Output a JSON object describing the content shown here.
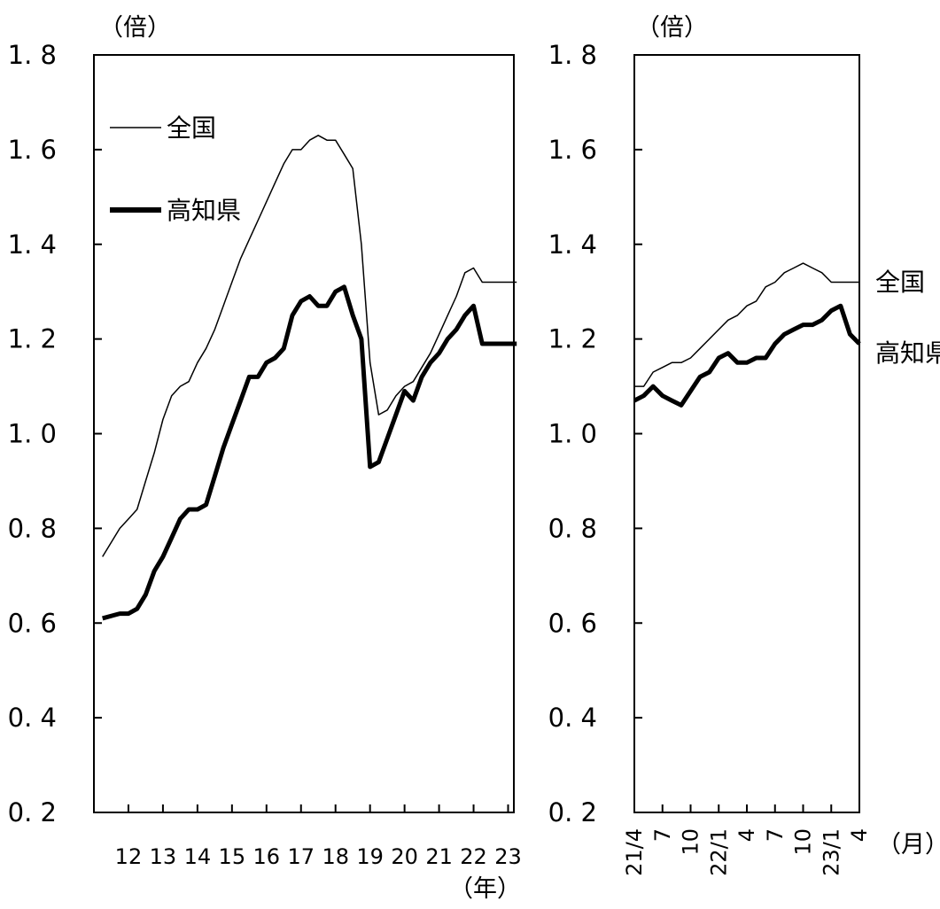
{
  "chart_data": [
    {
      "type": "line",
      "yunit": "（倍）",
      "xunit": "（年）",
      "ylim": [
        0.2,
        1.8
      ],
      "yticks": [
        "0. 2",
        "0. 4",
        "0. 6",
        "0. 8",
        "1. 0",
        "1. 2",
        "1. 4",
        "1. 6",
        "1. 8"
      ],
      "xticks": [
        "12",
        "13",
        "14",
        "15",
        "16",
        "17",
        "18",
        "19",
        "20",
        "21",
        "22",
        "23"
      ],
      "grid": false,
      "legend_position": "top-left",
      "x": [
        "2011/4",
        "2011/10",
        "2012/1",
        "2012/4",
        "2012/7",
        "2012/10",
        "2013/1",
        "2013/4",
        "2013/7",
        "2013/10",
        "2014/1",
        "2014/4",
        "2014/7",
        "2014/10",
        "2015/1",
        "2015/4",
        "2015/7",
        "2015/10",
        "2016/1",
        "2016/4",
        "2016/7",
        "2016/10",
        "2017/1",
        "2017/4",
        "2017/7",
        "2017/10",
        "2018/1",
        "2018/4",
        "2018/7",
        "2018/10",
        "2019/1",
        "2019/4",
        "2019/7",
        "2019/10",
        "2020/1",
        "2020/4",
        "2020/7",
        "2020/10",
        "2021/1",
        "2021/4",
        "2021/7",
        "2021/10",
        "2022/1",
        "2022/4",
        "2022/7",
        "2022/10",
        "2023/1",
        "2023/4"
      ],
      "series": [
        {
          "name": "全国",
          "color": "#000000",
          "weight": "thin",
          "values": [
            0.74,
            0.8,
            0.82,
            0.84,
            0.9,
            0.96,
            1.03,
            1.08,
            1.1,
            1.11,
            1.15,
            1.18,
            1.22,
            1.27,
            1.32,
            1.37,
            1.41,
            1.45,
            1.49,
            1.53,
            1.57,
            1.6,
            1.6,
            1.62,
            1.63,
            1.62,
            1.62,
            1.59,
            1.56,
            1.4,
            1.15,
            1.04,
            1.05,
            1.08,
            1.1,
            1.11,
            1.14,
            1.17,
            1.21,
            1.25,
            1.29,
            1.34,
            1.35,
            1.32,
            1.32,
            1.32,
            1.32,
            1.32
          ]
        },
        {
          "name": "高知県",
          "color": "#000000",
          "weight": "thick",
          "values": [
            0.61,
            0.62,
            0.62,
            0.63,
            0.66,
            0.71,
            0.74,
            0.78,
            0.82,
            0.84,
            0.84,
            0.85,
            0.91,
            0.97,
            1.02,
            1.07,
            1.12,
            1.12,
            1.15,
            1.16,
            1.18,
            1.25,
            1.28,
            1.29,
            1.27,
            1.27,
            1.3,
            1.31,
            1.25,
            1.2,
            0.93,
            0.94,
            0.99,
            1.04,
            1.09,
            1.07,
            1.12,
            1.15,
            1.17,
            1.2,
            1.22,
            1.25,
            1.27,
            1.19,
            1.19,
            1.19,
            1.19,
            1.19
          ]
        }
      ]
    },
    {
      "type": "line",
      "yunit": "（倍）",
      "xunit": "（月）",
      "ylim": [
        0.2,
        1.8
      ],
      "yticks": [
        "0. 2",
        "0. 4",
        "0. 6",
        "0. 8",
        "1. 0",
        "1. 2",
        "1. 4",
        "1. 6",
        "1. 8"
      ],
      "xticks": [
        "21/4",
        "7",
        "10",
        "22/1",
        "4",
        "7",
        "10",
        "23/1",
        "4"
      ],
      "grid": false,
      "legend_position": "right",
      "x": [
        "21/4",
        "21/5",
        "21/6",
        "21/7",
        "21/8",
        "21/9",
        "21/10",
        "21/11",
        "21/12",
        "22/1",
        "22/2",
        "22/3",
        "22/4",
        "22/5",
        "22/6",
        "22/7",
        "22/8",
        "22/9",
        "22/10",
        "22/11",
        "22/12",
        "23/1",
        "23/2",
        "23/3",
        "23/4"
      ],
      "series": [
        {
          "name": "全国",
          "color": "#000000",
          "weight": "thin",
          "values": [
            1.1,
            1.1,
            1.13,
            1.14,
            1.15,
            1.15,
            1.16,
            1.18,
            1.2,
            1.22,
            1.24,
            1.25,
            1.27,
            1.28,
            1.31,
            1.32,
            1.34,
            1.35,
            1.36,
            1.35,
            1.34,
            1.32,
            1.32,
            1.32,
            1.32
          ]
        },
        {
          "name": "高知県",
          "color": "#000000",
          "weight": "thick",
          "values": [
            1.07,
            1.08,
            1.1,
            1.08,
            1.07,
            1.06,
            1.09,
            1.12,
            1.13,
            1.16,
            1.17,
            1.15,
            1.15,
            1.16,
            1.16,
            1.19,
            1.21,
            1.22,
            1.23,
            1.23,
            1.24,
            1.26,
            1.27,
            1.21,
            1.19
          ]
        }
      ]
    }
  ]
}
